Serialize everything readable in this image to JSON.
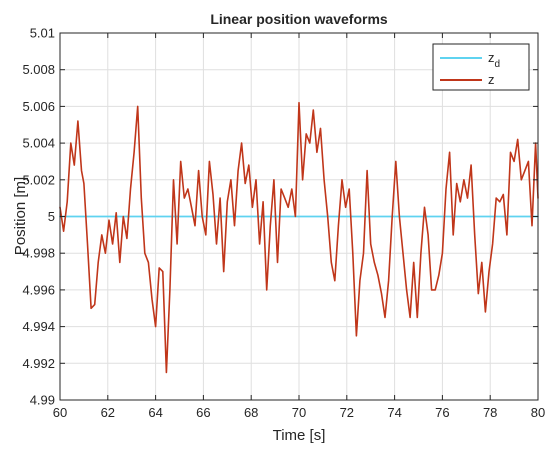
{
  "chart_data": {
    "type": "line",
    "title": "Linear position waveforms",
    "xlabel": "Time [s]",
    "ylabel": "Position [m]",
    "xlim": [
      60,
      80
    ],
    "ylim": [
      4.99,
      5.01
    ],
    "grid": true,
    "legend_placement": "top-right",
    "x_ticks": [
      60,
      62,
      64,
      66,
      68,
      70,
      72,
      74,
      76,
      78,
      80
    ],
    "x_tick_labels": [
      "60",
      "62",
      "64",
      "66",
      "68",
      "70",
      "72",
      "74",
      "76",
      "78",
      "80"
    ],
    "y_ticks": [
      4.99,
      4.992,
      4.994,
      4.996,
      4.998,
      5.0,
      5.002,
      5.004,
      5.006,
      5.008,
      5.01
    ],
    "y_tick_labels": [
      "4.99",
      "4.992",
      "4.994",
      "4.996",
      "4.998",
      "5",
      "5.002",
      "5.004",
      "5.006",
      "5.008",
      "5.01"
    ],
    "series": [
      {
        "name": "z",
        "name_sub": "d",
        "color": "#5fd3f0",
        "x": [
          60,
          80
        ],
        "y": [
          5.0,
          5.0
        ]
      },
      {
        "name": "z",
        "color": "#c0361a",
        "x": [
          60.0,
          60.15,
          60.3,
          60.45,
          60.6,
          60.75,
          60.9,
          61.0,
          61.15,
          61.3,
          61.45,
          61.6,
          61.75,
          61.9,
          62.05,
          62.2,
          62.35,
          62.5,
          62.65,
          62.8,
          62.95,
          63.1,
          63.25,
          63.4,
          63.55,
          63.7,
          63.85,
          64.0,
          64.15,
          64.3,
          64.45,
          64.6,
          64.75,
          64.9,
          65.05,
          65.2,
          65.35,
          65.5,
          65.65,
          65.8,
          65.95,
          66.1,
          66.25,
          66.4,
          66.55,
          66.7,
          66.85,
          67.0,
          67.15,
          67.3,
          67.45,
          67.6,
          67.75,
          67.9,
          68.05,
          68.2,
          68.35,
          68.5,
          68.65,
          68.8,
          68.95,
          69.1,
          69.25,
          69.4,
          69.55,
          69.7,
          69.85,
          70.0,
          70.15,
          70.3,
          70.45,
          70.6,
          70.75,
          70.9,
          71.05,
          71.2,
          71.35,
          71.5,
          71.65,
          71.8,
          71.95,
          72.1,
          72.25,
          72.4,
          72.55,
          72.7,
          72.85,
          73.0,
          73.15,
          73.3,
          73.45,
          73.6,
          73.75,
          73.9,
          74.05,
          74.2,
          74.35,
          74.5,
          74.65,
          74.8,
          74.95,
          75.1,
          75.25,
          75.4,
          75.55,
          75.7,
          75.85,
          76.0,
          76.15,
          76.3,
          76.45,
          76.6,
          76.75,
          76.9,
          77.05,
          77.2,
          77.35,
          77.5,
          77.65,
          77.8,
          77.95,
          78.1,
          78.25,
          78.4,
          78.55,
          78.7,
          78.85,
          79.0,
          79.15,
          79.3,
          79.45,
          79.6,
          79.75,
          79.9,
          80.0
        ],
        "y": [
          5.0005,
          4.9992,
          5.0008,
          5.004,
          5.0028,
          5.0052,
          5.0025,
          5.0018,
          4.9985,
          4.995,
          4.9952,
          4.9975,
          4.999,
          4.998,
          4.9998,
          4.9985,
          5.0002,
          4.9975,
          5.0,
          4.9988,
          5.0015,
          5.0035,
          5.006,
          5.001,
          4.998,
          4.9975,
          4.9955,
          4.994,
          4.9972,
          4.997,
          4.9915,
          4.996,
          5.002,
          4.9985,
          5.003,
          5.001,
          5.0015,
          5.0005,
          4.9995,
          5.0025,
          5.0,
          4.999,
          5.003,
          5.0012,
          4.9985,
          5.001,
          4.997,
          5.0008,
          5.002,
          4.9995,
          5.0025,
          5.004,
          5.0018,
          5.0028,
          5.0005,
          5.002,
          4.9985,
          5.0008,
          4.996,
          4.9995,
          5.002,
          4.9975,
          5.0015,
          5.001,
          5.0005,
          5.0015,
          5.0,
          5.0062,
          5.002,
          5.0045,
          5.004,
          5.0058,
          5.0035,
          5.0048,
          5.002,
          5.0,
          4.9975,
          4.9965,
          4.9995,
          5.002,
          5.0005,
          5.0015,
          4.998,
          4.9935,
          4.9965,
          4.998,
          5.0025,
          4.9985,
          4.9975,
          4.9968,
          4.9958,
          4.9945,
          4.9965,
          5.0,
          5.003,
          5.0,
          4.998,
          4.996,
          4.9945,
          4.9975,
          4.9945,
          4.998,
          5.0005,
          4.999,
          4.996,
          4.996,
          4.9968,
          4.998,
          5.0015,
          5.0035,
          4.999,
          5.0018,
          5.0008,
          5.002,
          5.001,
          5.0028,
          4.999,
          4.9958,
          4.9975,
          4.9948,
          4.997,
          4.9985,
          5.001,
          5.0008,
          5.0012,
          4.999,
          5.0035,
          5.003,
          5.0042,
          5.002,
          5.0025,
          5.003,
          4.9995,
          5.004,
          5.001
        ]
      }
    ]
  }
}
